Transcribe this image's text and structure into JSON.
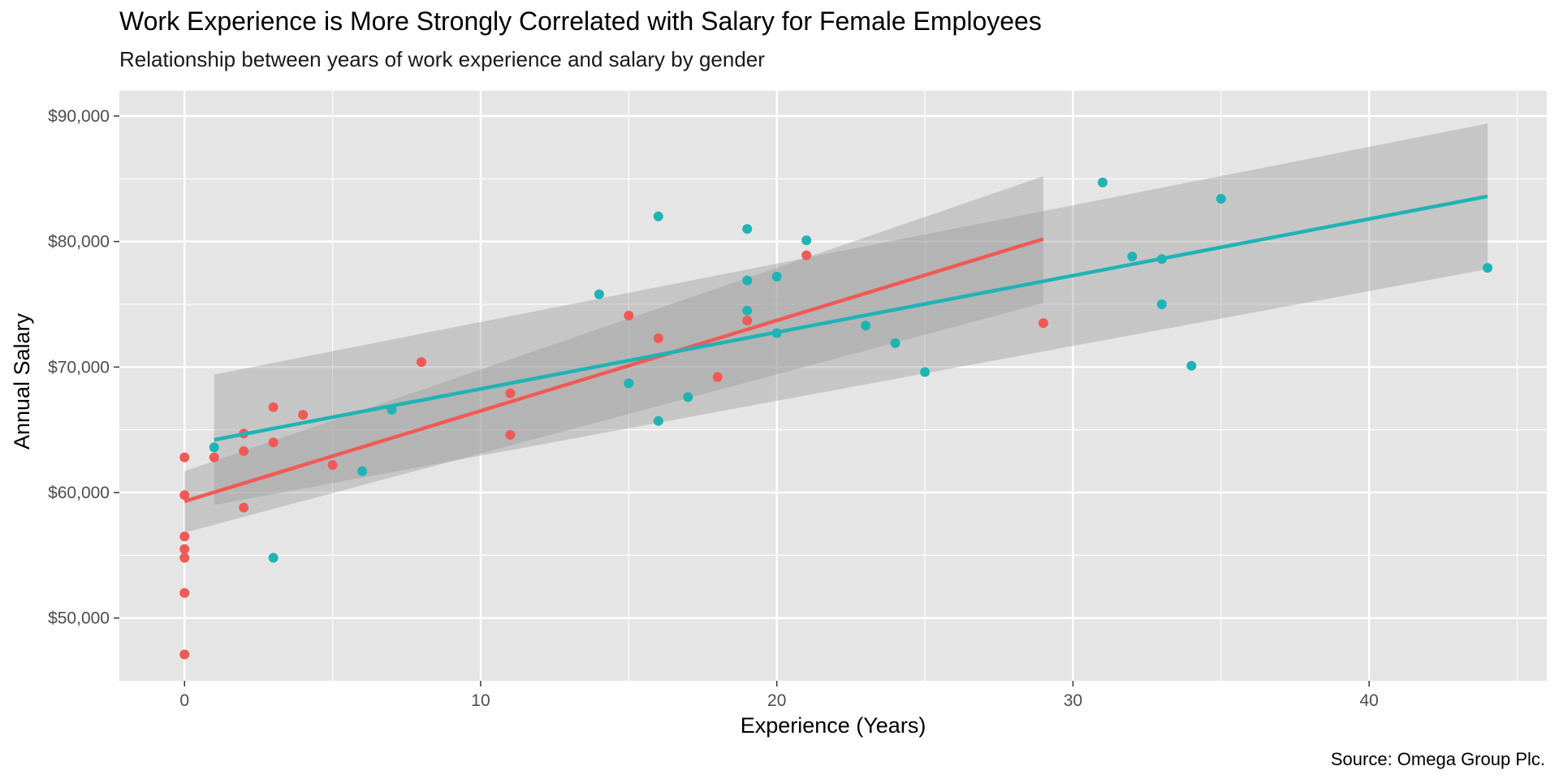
{
  "chart_data": {
    "type": "scatter",
    "title": "Work Experience is More Strongly Correlated with Salary for Female Employees",
    "subtitle": "Relationship between years of work experience and salary by gender",
    "xlabel": "Experience (Years)",
    "ylabel": "Annual Salary",
    "caption": "Source: Omega Group Plc.",
    "xlim": [
      -2.2,
      46.0
    ],
    "ylim": [
      45000,
      92000
    ],
    "x_ticks": [
      0,
      10,
      20,
      30,
      40
    ],
    "x_tick_labels": [
      "0",
      "10",
      "20",
      "30",
      "40"
    ],
    "y_ticks": [
      50000,
      60000,
      70000,
      80000,
      90000
    ],
    "y_tick_labels": [
      "$50,000",
      "$60,000",
      "$70,000",
      "$80,000",
      "$90,000"
    ],
    "grid": true,
    "legend": "none",
    "panel_background": "#e5e5e5",
    "grid_color": "#ffffff",
    "band_color": "#999999",
    "series": [
      {
        "color": "#f05a55",
        "points": [
          [
            0,
            62800
          ],
          [
            0,
            59800
          ],
          [
            0,
            56500
          ],
          [
            0,
            55500
          ],
          [
            0,
            54800
          ],
          [
            0,
            52000
          ],
          [
            0,
            47100
          ],
          [
            1,
            62800
          ],
          [
            2,
            64700
          ],
          [
            2,
            63300
          ],
          [
            2,
            58800
          ],
          [
            3,
            66800
          ],
          [
            3,
            64000
          ],
          [
            4,
            66200
          ],
          [
            5,
            62200
          ],
          [
            8,
            70400
          ],
          [
            11,
            67900
          ],
          [
            11,
            64600
          ],
          [
            15,
            74100
          ],
          [
            16,
            72300
          ],
          [
            18,
            69200
          ],
          [
            19,
            73700
          ],
          [
            21,
            78900
          ],
          [
            29,
            73500
          ]
        ],
        "trend": [
          [
            0,
            59300
          ],
          [
            29,
            80200
          ]
        ],
        "band": {
          "x": [
            0,
            29
          ],
          "upper": [
            61700,
            85200
          ],
          "lower": [
            56800,
            75100
          ]
        }
      },
      {
        "color": "#1fb3b5",
        "points": [
          [
            1,
            63600
          ],
          [
            3,
            54800
          ],
          [
            6,
            61700
          ],
          [
            7,
            66600
          ],
          [
            14,
            75800
          ],
          [
            15,
            68700
          ],
          [
            16,
            82000
          ],
          [
            16,
            65700
          ],
          [
            17,
            67600
          ],
          [
            19,
            81000
          ],
          [
            19,
            76900
          ],
          [
            19,
            74500
          ],
          [
            20,
            77200
          ],
          [
            20,
            72700
          ],
          [
            21,
            80100
          ],
          [
            23,
            73300
          ],
          [
            24,
            71900
          ],
          [
            25,
            69600
          ],
          [
            31,
            84700
          ],
          [
            32,
            78800
          ],
          [
            33,
            78600
          ],
          [
            33,
            75000
          ],
          [
            34,
            70100
          ],
          [
            35,
            83400
          ],
          [
            44,
            77900
          ]
        ],
        "trend": [
          [
            1,
            64200
          ],
          [
            44,
            83600
          ]
        ],
        "band": {
          "x": [
            1,
            44
          ],
          "upper": [
            69400,
            89400
          ],
          "lower": [
            59000,
            77800
          ]
        }
      }
    ]
  }
}
